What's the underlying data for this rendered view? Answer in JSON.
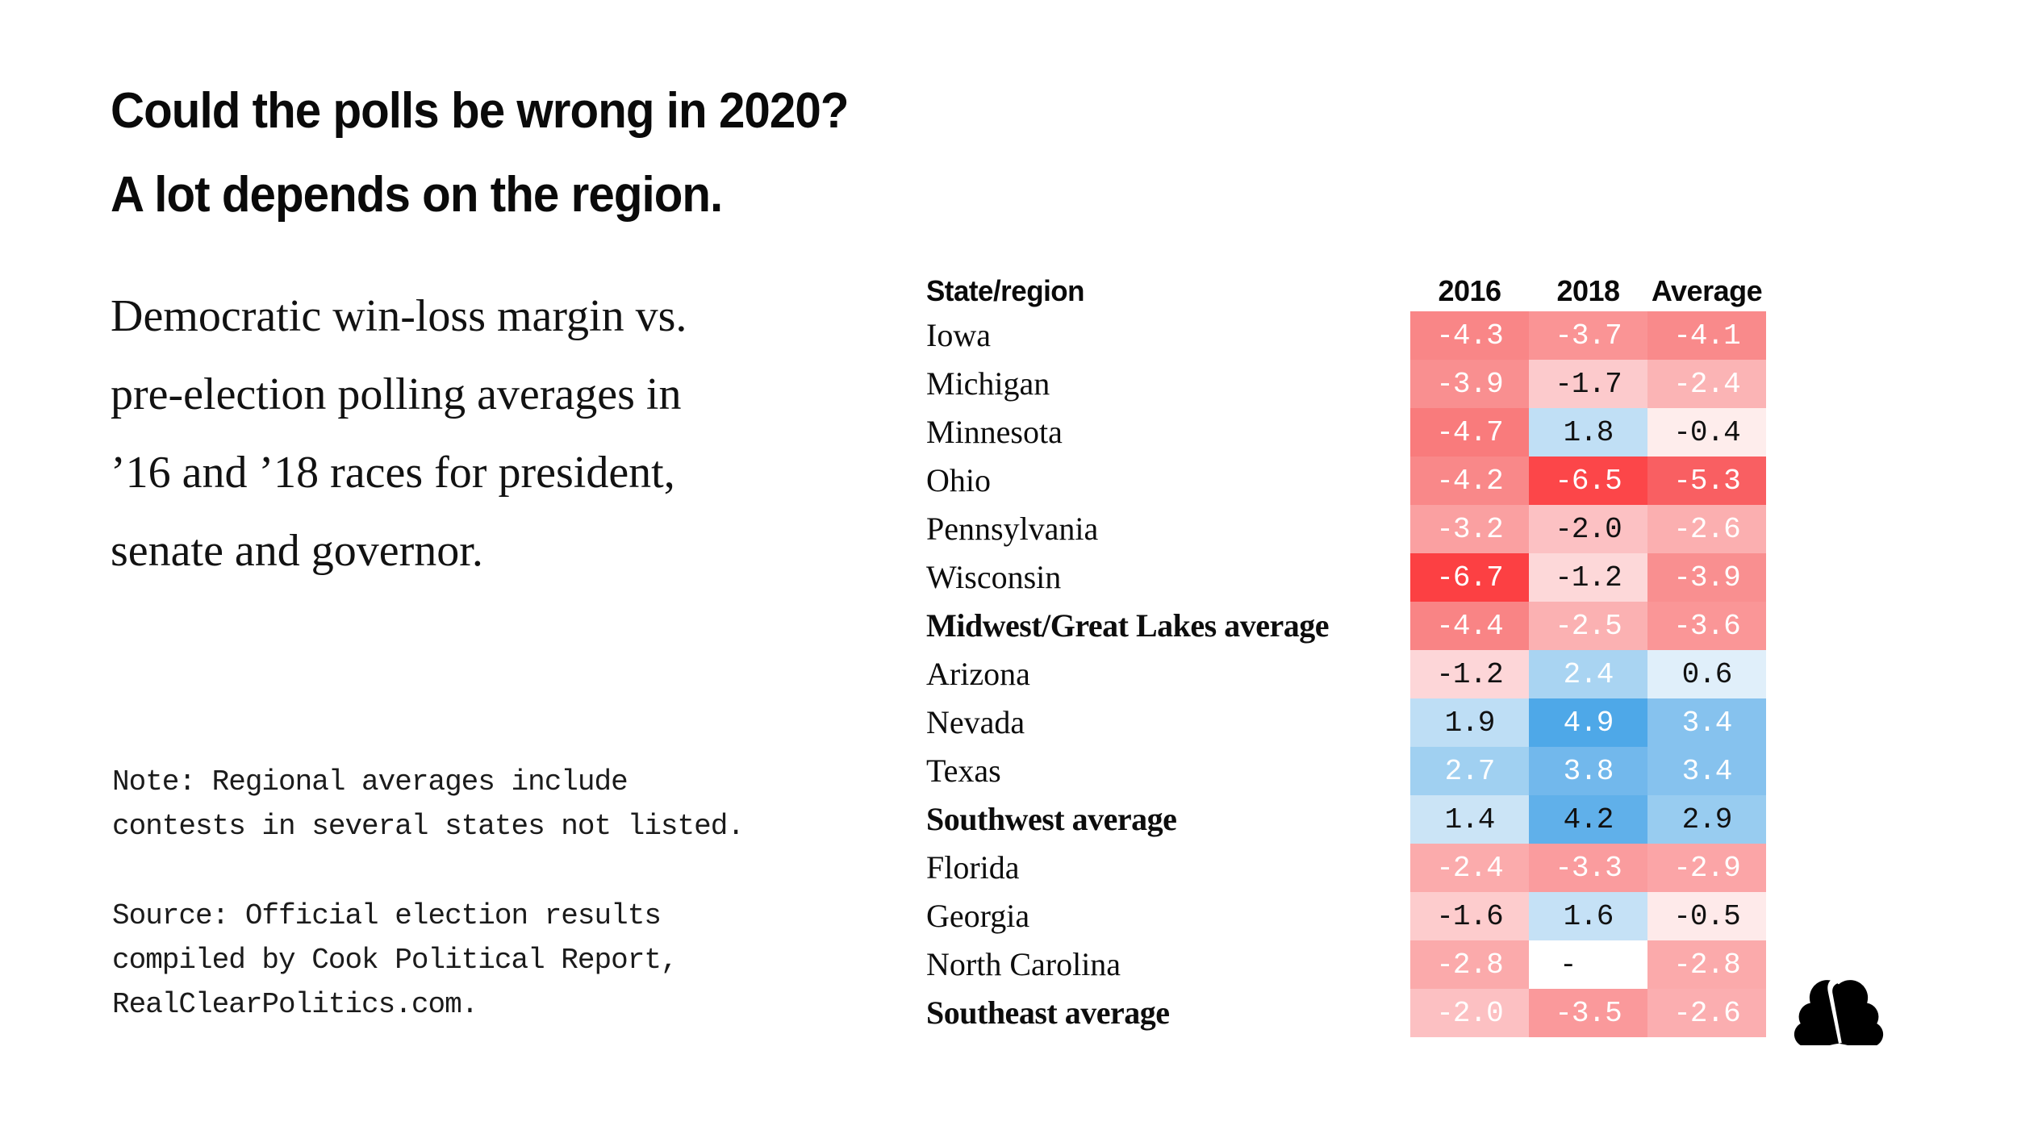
{
  "title": {
    "lines": [
      "Could the polls be wrong in 2020?",
      "A lot depends on the region."
    ]
  },
  "subtitle": {
    "lines": [
      "Democratic win-loss margin vs.",
      "pre-election polling averages in",
      "’16 and ’18 races for president,",
      "senate and governor."
    ]
  },
  "note": {
    "lines": [
      "Note: Regional averages include",
      "contests in several states not listed."
    ]
  },
  "source": {
    "lines": [
      "Source: Official election results",
      "compiled by Cook Political Report,",
      "RealClearPolitics.com."
    ]
  },
  "logo": {
    "label": "NBC peacock",
    "color": "#000000"
  },
  "chart_data": {
    "type": "heatmap",
    "title": "Could the polls be wrong in 2020? A lot depends on the region.",
    "description": "Democratic win-loss margin vs. pre-election polling averages in ’16 and ’18 races for president, senate and governor.",
    "row_header": "State/region",
    "columns": [
      "2016",
      "2018",
      "Average"
    ],
    "palette": {
      "strong_negative": "#fc4043",
      "neutral": "#ffffff",
      "strong_positive": "#4ea8e8"
    },
    "rows": [
      {
        "label": "Iowa",
        "bold": false,
        "cells": [
          {
            "text": "-4.3",
            "value": -4.3,
            "bg": "#f98687",
            "fg": "#ffffff"
          },
          {
            "text": "-3.7",
            "value": -3.7,
            "bg": "#fa9495",
            "fg": "#ffffff"
          },
          {
            "text": "-4.1",
            "value": -4.1,
            "bg": "#f98a8b",
            "fg": "#ffffff"
          }
        ]
      },
      {
        "label": "Michigan",
        "bold": false,
        "cells": [
          {
            "text": "-3.9",
            "value": -3.9,
            "bg": "#f98f90",
            "fg": "#ffffff"
          },
          {
            "text": "-1.7",
            "value": -1.7,
            "bg": "#fccacc",
            "fg": "#111111"
          },
          {
            "text": "-2.4",
            "value": -2.4,
            "bg": "#fbb4b5",
            "fg": "#ffffff"
          }
        ]
      },
      {
        "label": "Minnesota",
        "bold": false,
        "cells": [
          {
            "text": "-4.7",
            "value": -4.7,
            "bg": "#f97b7c",
            "fg": "#ffffff"
          },
          {
            "text": "1.8",
            "value": 1.8,
            "bg": "#c0dff5",
            "fg": "#111111"
          },
          {
            "text": "-0.4",
            "value": -0.4,
            "bg": "#feedec",
            "fg": "#111111"
          }
        ]
      },
      {
        "label": "Ohio",
        "bold": false,
        "cells": [
          {
            "text": "-4.2",
            "value": -4.2,
            "bg": "#f98889",
            "fg": "#ffffff"
          },
          {
            "text": "-6.5",
            "value": -6.5,
            "bg": "#fc4649",
            "fg": "#ffffff"
          },
          {
            "text": "-5.3",
            "value": -5.3,
            "bg": "#f95f62",
            "fg": "#ffffff"
          }
        ]
      },
      {
        "label": "Pennsylvania",
        "bold": false,
        "cells": [
          {
            "text": "-3.2",
            "value": -3.2,
            "bg": "#faa0a1",
            "fg": "#ffffff"
          },
          {
            "text": "-2.0",
            "value": -2.0,
            "bg": "#fcc1c3",
            "fg": "#111111"
          },
          {
            "text": "-2.6",
            "value": -2.6,
            "bg": "#fbafb0",
            "fg": "#ffffff"
          }
        ]
      },
      {
        "label": "Wisconsin",
        "bold": false,
        "cells": [
          {
            "text": "-6.7",
            "value": -6.7,
            "bg": "#fc4043",
            "fg": "#ffffff"
          },
          {
            "text": "-1.2",
            "value": -1.2,
            "bg": "#fdd8d9",
            "fg": "#111111"
          },
          {
            "text": "-3.9",
            "value": -3.9,
            "bg": "#f98f90",
            "fg": "#ffffff"
          }
        ]
      },
      {
        "label": "Midwest/Great Lakes average",
        "bold": true,
        "cells": [
          {
            "text": "-4.4",
            "value": -4.4,
            "bg": "#f98485",
            "fg": "#ffffff"
          },
          {
            "text": "-2.5",
            "value": -2.5,
            "bg": "#fbb1b2",
            "fg": "#ffffff"
          },
          {
            "text": "-3.6",
            "value": -3.6,
            "bg": "#fa9697",
            "fg": "#ffffff"
          }
        ]
      },
      {
        "label": "Arizona",
        "bold": false,
        "cells": [
          {
            "text": "-1.2",
            "value": -1.2,
            "bg": "#fdd6d8",
            "fg": "#111111"
          },
          {
            "text": "2.4",
            "value": 2.4,
            "bg": "#a9d4f2",
            "fg": "#ffffff"
          },
          {
            "text": "0.6",
            "value": 0.6,
            "bg": "#e0effa",
            "fg": "#111111"
          }
        ]
      },
      {
        "label": "Nevada",
        "bold": false,
        "cells": [
          {
            "text": "1.9",
            "value": 1.9,
            "bg": "#bedef5",
            "fg": "#111111"
          },
          {
            "text": "4.9",
            "value": 4.9,
            "bg": "#4ea8e8",
            "fg": "#ffffff"
          },
          {
            "text": "3.4",
            "value": 3.4,
            "bg": "#86c2ee",
            "fg": "#ffffff"
          }
        ]
      },
      {
        "label": "Texas",
        "bold": false,
        "cells": [
          {
            "text": "2.7",
            "value": 2.7,
            "bg": "#a0d0f1",
            "fg": "#ffffff"
          },
          {
            "text": "3.8",
            "value": 3.8,
            "bg": "#72b8ec",
            "fg": "#ffffff"
          },
          {
            "text": "3.4",
            "value": 3.4,
            "bg": "#86c2ee",
            "fg": "#ffffff"
          }
        ]
      },
      {
        "label": "Southwest average",
        "bold": true,
        "cells": [
          {
            "text": "1.4",
            "value": 1.4,
            "bg": "#cbe4f6",
            "fg": "#111111"
          },
          {
            "text": "4.2",
            "value": 4.2,
            "bg": "#60b0ea",
            "fg": "#111111"
          },
          {
            "text": "2.9",
            "value": 2.9,
            "bg": "#98ccf0",
            "fg": "#111111"
          }
        ]
      },
      {
        "label": "Florida",
        "bold": false,
        "cells": [
          {
            "text": "-2.4",
            "value": -2.4,
            "bg": "#fbabac",
            "fg": "#ffffff"
          },
          {
            "text": "-3.3",
            "value": -3.3,
            "bg": "#fa9c9e",
            "fg": "#ffffff"
          },
          {
            "text": "-2.9",
            "value": -2.9,
            "bg": "#fba5a7",
            "fg": "#ffffff"
          }
        ]
      },
      {
        "label": "Georgia",
        "bold": false,
        "cells": [
          {
            "text": "-1.6",
            "value": -1.6,
            "bg": "#fdcccd",
            "fg": "#111111"
          },
          {
            "text": "1.6",
            "value": 1.6,
            "bg": "#c5e1f6",
            "fg": "#111111"
          },
          {
            "text": "-0.5",
            "value": -0.5,
            "bg": "#feeaea",
            "fg": "#111111"
          }
        ]
      },
      {
        "label": "North Carolina",
        "bold": false,
        "cells": [
          {
            "text": "-2.8",
            "value": -2.8,
            "bg": "#fbaaab",
            "fg": "#ffffff"
          },
          {
            "text": "-",
            "value": null,
            "bg": "#ffffff",
            "fg": "#111111"
          },
          {
            "text": "-2.8",
            "value": -2.8,
            "bg": "#fbaaab",
            "fg": "#ffffff"
          }
        ]
      },
      {
        "label": "Southeast average",
        "bold": true,
        "cells": [
          {
            "text": "-2.0",
            "value": -2.0,
            "bg": "#fcc0c2",
            "fg": "#ffffff"
          },
          {
            "text": "-3.5",
            "value": -3.5,
            "bg": "#fa999b",
            "fg": "#ffffff"
          },
          {
            "text": "-2.6",
            "value": -2.6,
            "bg": "#fbaeb0",
            "fg": "#ffffff"
          }
        ]
      }
    ],
    "layout": {
      "grid": false,
      "legend": "none",
      "label_column_left": true
    }
  }
}
